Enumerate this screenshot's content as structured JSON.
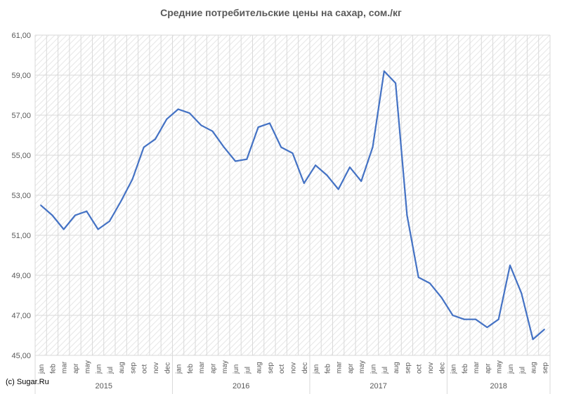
{
  "chart_data": {
    "type": "line",
    "title": "Средние потребительские цены на сахар, сом./кг",
    "xlabel": "",
    "ylabel": "",
    "ylim": [
      45,
      61
    ],
    "yticks": [
      "45,00",
      "47,00",
      "49,00",
      "51,00",
      "53,00",
      "55,00",
      "57,00",
      "59,00",
      "61,00"
    ],
    "grid": true,
    "months": [
      "jan",
      "feb",
      "mar",
      "apr",
      "may",
      "jun",
      "jul",
      "aug",
      "sep",
      "oct",
      "nov",
      "dec",
      "jan",
      "feb",
      "mar",
      "apr",
      "may",
      "jun",
      "jul",
      "aug",
      "sep",
      "oct",
      "nov",
      "dec",
      "jan",
      "feb",
      "mar",
      "apr",
      "may",
      "jun",
      "jul",
      "aug",
      "sep",
      "oct",
      "nov",
      "dec",
      "jan",
      "feb",
      "mar",
      "apr",
      "may",
      "jun",
      "jul",
      "aug",
      "sep"
    ],
    "years": [
      {
        "label": "2015",
        "months": 12
      },
      {
        "label": "2016",
        "months": 12
      },
      {
        "label": "2017",
        "months": 12
      },
      {
        "label": "2018",
        "months": 9
      }
    ],
    "series": [
      {
        "color": "#4472c4",
        "values": [
          52.5,
          52.0,
          51.3,
          52.0,
          52.2,
          51.3,
          51.7,
          52.7,
          53.8,
          55.4,
          55.8,
          56.8,
          57.3,
          57.1,
          56.5,
          56.2,
          55.4,
          54.7,
          54.8,
          56.4,
          56.6,
          55.4,
          55.1,
          53.6,
          54.5,
          54.0,
          53.3,
          54.4,
          53.7,
          55.4,
          59.2,
          58.6,
          52.0,
          48.9,
          48.6,
          47.9,
          47.0,
          46.8,
          46.8,
          46.4,
          46.8,
          49.5,
          48.1,
          45.8,
          46.3
        ]
      }
    ]
  },
  "credit": "(c) Sugar.Ru"
}
